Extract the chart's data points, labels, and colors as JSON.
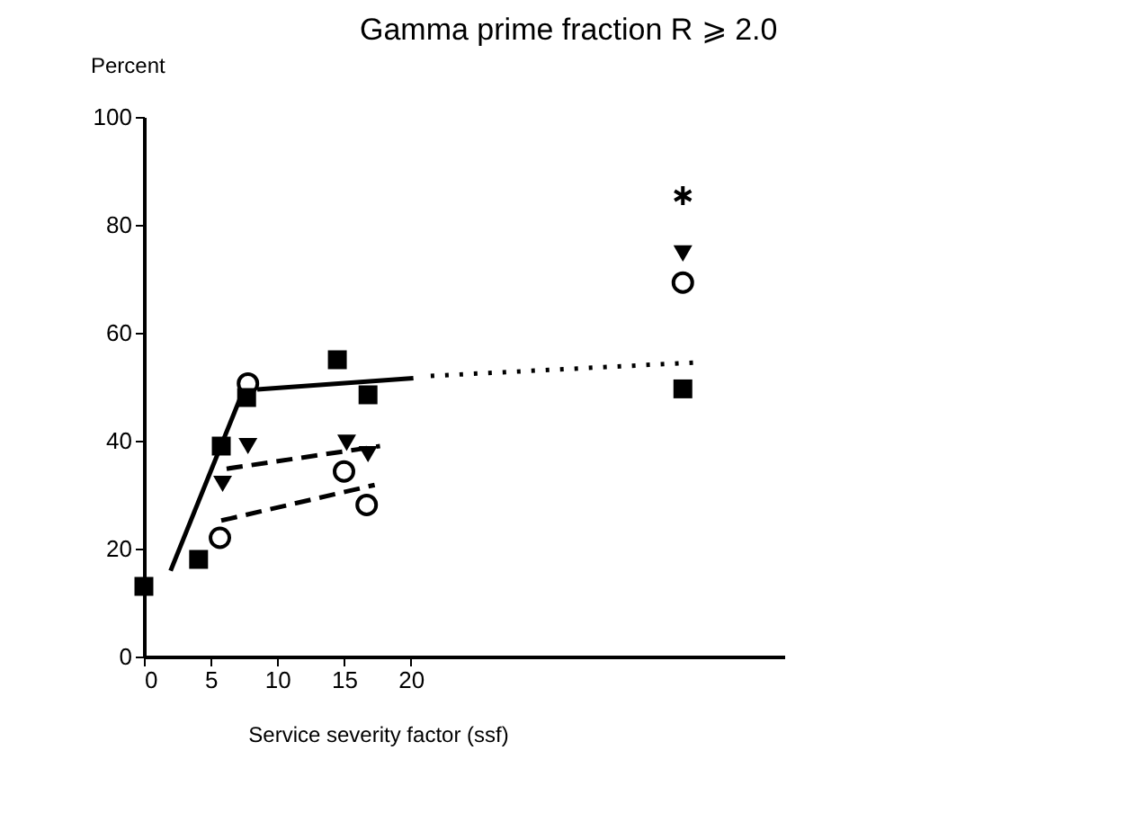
{
  "chart_data": {
    "type": "scatter",
    "title": "Gamma prime fraction R ⩾ 2.0",
    "xlabel": "Service severity factor (ssf)",
    "ylabel": "Percent",
    "xlim": [
      0,
      48
    ],
    "xticks": [
      0,
      5,
      10,
      15,
      20
    ],
    "ylim": [
      0,
      100
    ],
    "yticks": [
      0,
      20,
      40,
      60,
      80,
      100
    ],
    "grid": false,
    "series": [
      {
        "type": "scatter",
        "marker": "square",
        "color": "#000000",
        "x": [
          0,
          4.1,
          5.8,
          7.7,
          14.5,
          16.8,
          40.4
        ],
        "values": [
          13,
          18,
          39,
          48,
          55,
          48.5,
          49.6
        ]
      },
      {
        "type": "scatter",
        "marker": "triangle",
        "color": "#000000",
        "x": [
          5.9,
          7.8,
          15.2,
          16.8,
          40.4
        ],
        "values": [
          32,
          39,
          39.6,
          37.5,
          74.7
        ]
      },
      {
        "type": "scatter",
        "marker": "circle",
        "color": "#000000",
        "x": [
          5.7,
          7.8,
          15,
          16.7,
          40.4
        ],
        "values": [
          22,
          50.6,
          34.3,
          28.1,
          69.3
        ]
      },
      {
        "type": "scatter",
        "marker": "cross",
        "color": "#000000",
        "x": [
          40.4
        ],
        "values": [
          85.4
        ]
      },
      {
        "type": "line",
        "line_style": "solid",
        "color": "#000000",
        "x": [
          2.0,
          7.4
        ],
        "values": [
          15.9,
          49
        ]
      },
      {
        "type": "line",
        "line_style": "solid",
        "color": "#000000",
        "x": [
          8.5,
          20.2
        ],
        "values": [
          49.5,
          51.6
        ]
      },
      {
        "type": "line",
        "line_style": "dotted",
        "color": "#000000",
        "x": [
          21.5,
          41.4
        ],
        "values": [
          52,
          54.5
        ]
      },
      {
        "type": "line",
        "line_style": "dashed",
        "color": "#000000",
        "x": [
          6.2,
          17.7
        ],
        "values": [
          34.8,
          39
        ]
      },
      {
        "type": "line",
        "line_style": "dashed",
        "color": "#000000",
        "x": [
          5.8,
          17.3
        ],
        "values": [
          25.2,
          31.8
        ]
      }
    ]
  }
}
